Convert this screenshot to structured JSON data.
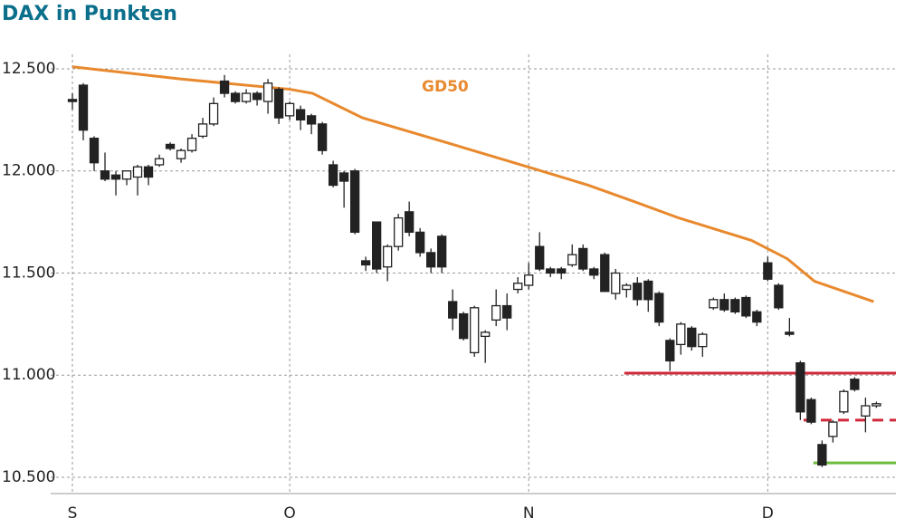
{
  "chart_data": {
    "type": "candlestick",
    "title": "DAX in Punkten",
    "x": [
      0,
      1,
      2,
      3,
      4,
      5,
      6,
      7,
      8,
      9,
      10,
      11,
      12,
      13,
      14,
      15,
      16,
      17,
      18,
      19,
      20,
      21,
      22,
      23,
      24,
      25,
      26,
      27,
      28,
      29,
      30,
      31,
      32,
      33,
      34,
      35,
      36,
      37,
      38,
      39,
      40,
      41,
      42,
      43,
      44,
      45,
      46,
      47,
      48,
      49,
      50,
      51,
      52,
      53,
      54,
      55,
      56,
      57,
      58,
      59,
      60,
      61,
      62,
      63,
      64,
      65,
      66,
      67,
      68,
      69,
      70,
      71,
      72,
      73,
      74
    ],
    "open": [
      12350,
      12420,
      12160,
      12000,
      11980,
      11960,
      11970,
      12020,
      12030,
      12130,
      12060,
      12100,
      12170,
      12230,
      12440,
      12380,
      12340,
      12380,
      12340,
      12400,
      12270,
      12300,
      12270,
      12230,
      12030,
      11990,
      12000,
      11560,
      11750,
      11530,
      11630,
      11800,
      11700,
      11600,
      11680,
      11360,
      11300,
      11110,
      11190,
      11270,
      11340,
      11420,
      11440,
      11630,
      11520,
      11520,
      11540,
      11620,
      11520,
      11590,
      11400,
      11420,
      11450,
      11460,
      11400,
      11170,
      11150,
      11230,
      11140,
      11330,
      11370,
      11370,
      11380,
      11310,
      11550,
      11440,
      11210,
      11060,
      10880,
      10660,
      10700,
      10820,
      10980,
      10800,
      10850
    ],
    "high": [
      12380,
      12430,
      12170,
      12090,
      12000,
      12000,
      12030,
      12030,
      12080,
      12140,
      12110,
      12180,
      12260,
      12360,
      12470,
      12390,
      12400,
      12390,
      12450,
      12410,
      12340,
      12320,
      12280,
      12240,
      12050,
      12000,
      12010,
      11580,
      11750,
      11640,
      11790,
      11850,
      11720,
      11620,
      11690,
      11420,
      11310,
      11340,
      11220,
      11420,
      11400,
      11480,
      11550,
      11700,
      11530,
      11530,
      11640,
      11640,
      11530,
      11600,
      11520,
      11450,
      11480,
      11470,
      11410,
      11180,
      11260,
      11240,
      11210,
      11380,
      11400,
      11380,
      11390,
      11320,
      11580,
      11450,
      11280,
      11070,
      10890,
      10680,
      10780,
      10930,
      10990,
      10890,
      10870
    ],
    "low": [
      12300,
      12150,
      12000,
      11950,
      11880,
      11930,
      11880,
      11930,
      12020,
      12100,
      12040,
      12090,
      12160,
      12220,
      12360,
      12330,
      12330,
      12320,
      12280,
      12230,
      12250,
      12200,
      12180,
      12080,
      11920,
      11820,
      11690,
      11510,
      11500,
      11460,
      11610,
      11680,
      11580,
      11500,
      11500,
      11220,
      11170,
      11090,
      11060,
      11240,
      11220,
      11400,
      11420,
      11510,
      11480,
      11470,
      11530,
      11510,
      11470,
      11410,
      11370,
      11380,
      11340,
      11310,
      11240,
      11020,
      11100,
      11120,
      11090,
      11320,
      11310,
      11300,
      11280,
      11240,
      11460,
      11320,
      11190,
      10780,
      10760,
      10550,
      10670,
      10810,
      10920,
      10720,
      10840
    ],
    "close": [
      12340,
      12200,
      12040,
      11960,
      11960,
      12000,
      12020,
      11970,
      12060,
      12110,
      12100,
      12160,
      12230,
      12330,
      12380,
      12340,
      12380,
      12350,
      12430,
      12260,
      12330,
      12250,
      12230,
      12100,
      11930,
      11950,
      11700,
      11540,
      11520,
      11630,
      11770,
      11700,
      11600,
      11530,
      11530,
      11280,
      11180,
      11330,
      11210,
      11340,
      11280,
      11450,
      11490,
      11520,
      11500,
      11500,
      11590,
      11520,
      11490,
      11410,
      11500,
      11440,
      11370,
      11370,
      11260,
      11070,
      11250,
      11140,
      11200,
      11370,
      11320,
      11310,
      11290,
      11260,
      11470,
      11330,
      11200,
      10820,
      10770,
      10560,
      10770,
      10920,
      10930,
      10850,
      10860
    ],
    "up_color": "#ffffff",
    "down_color": "#222222",
    "moving_average": {
      "name": "GD50",
      "color": "#e8892e",
      "x": [
        0,
        10,
        20,
        22.1,
        26.7,
        35,
        41.9,
        47.5,
        51.7,
        55.8,
        62.5,
        65.8,
        68.3,
        73.75
      ],
      "values": [
        12510,
        12450,
        12400,
        12380,
        12260,
        12130,
        12020,
        11930,
        11850,
        11770,
        11660,
        11570,
        11460,
        11360
      ]
    },
    "levels": [
      {
        "value": 11010,
        "start": 50.8,
        "color": "#d0293b",
        "dashed": false
      },
      {
        "value": 10780,
        "start": 67.3,
        "color": "#d0293b",
        "dashed": true
      },
      {
        "value": 10570,
        "start": 68.2,
        "color": "#6cbb3c",
        "dashed": false
      }
    ],
    "xlim": [
      -2,
      75.8
    ],
    "xticks": [
      {
        "value": 0,
        "label": "S"
      },
      {
        "value": 20,
        "label": "O"
      },
      {
        "value": 42,
        "label": "N"
      },
      {
        "value": 64,
        "label": "D"
      }
    ],
    "ylim": [
      10420,
      12571
    ],
    "yticks": [
      {
        "value": 10500,
        "label": "10.500"
      },
      {
        "value": 11000,
        "label": "11.000"
      },
      {
        "value": 11500,
        "label": "11.500"
      },
      {
        "value": 12000,
        "label": "12.000"
      },
      {
        "value": 12500,
        "label": "12.500"
      }
    ],
    "grid": true
  }
}
